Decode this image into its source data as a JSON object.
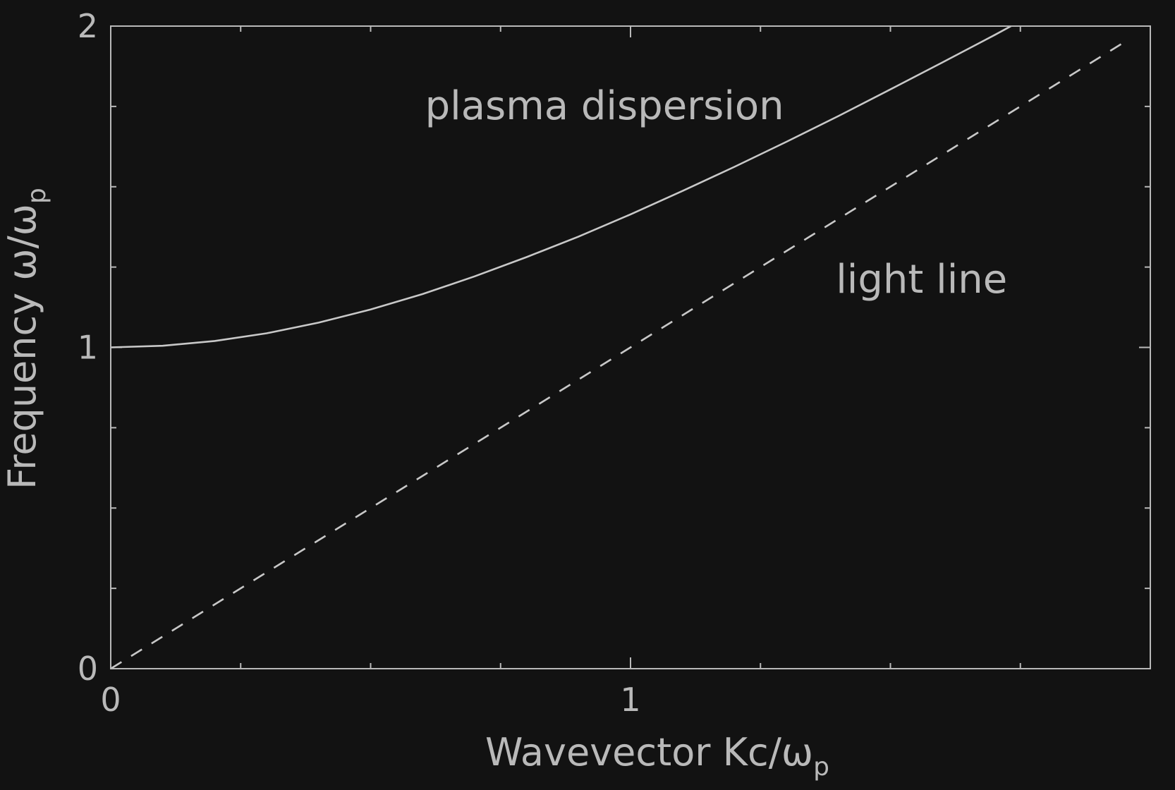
{
  "chart_data": {
    "type": "line",
    "xlabel": {
      "main": "Wavevector Kc/ω",
      "subscript": "p"
    },
    "ylabel": {
      "main": "Frequency ω/ω",
      "subscript": "p"
    },
    "xlim": [
      0,
      2
    ],
    "ylim": [
      0,
      2
    ],
    "x_ticks": [
      0,
      1
    ],
    "y_ticks": [
      0,
      1,
      2
    ],
    "x_tick_labels": [
      "0",
      "1"
    ],
    "y_tick_labels": [
      "0",
      "1",
      "2"
    ],
    "minor_tick_step": 0.25,
    "grid": false,
    "legend": "none",
    "series": [
      {
        "name": "plasma dispersion",
        "style": "solid",
        "color": "#c8c8c8",
        "x": [
          0,
          0.1,
          0.2,
          0.3,
          0.4,
          0.5,
          0.6,
          0.7,
          0.8,
          0.9,
          1.0,
          1.1,
          1.2,
          1.3,
          1.4,
          1.5,
          1.6,
          1.7,
          1.732
        ],
        "y": [
          1.0,
          1.005,
          1.02,
          1.044,
          1.077,
          1.118,
          1.166,
          1.221,
          1.281,
          1.345,
          1.414,
          1.487,
          1.562,
          1.64,
          1.72,
          1.803,
          1.887,
          1.972,
          2.0
        ]
      },
      {
        "name": "light line",
        "style": "dashed",
        "color": "#c8c8c8",
        "x": [
          0,
          1.96
        ],
        "y": [
          0,
          1.96
        ]
      }
    ],
    "annotations": [
      {
        "text": "plasma dispersion",
        "x": 0.95,
        "y": 1.71
      },
      {
        "text": "light line",
        "x": 1.56,
        "y": 1.17
      }
    ],
    "colors": {
      "background": "#121212",
      "foreground": "#b9b9b9"
    }
  }
}
